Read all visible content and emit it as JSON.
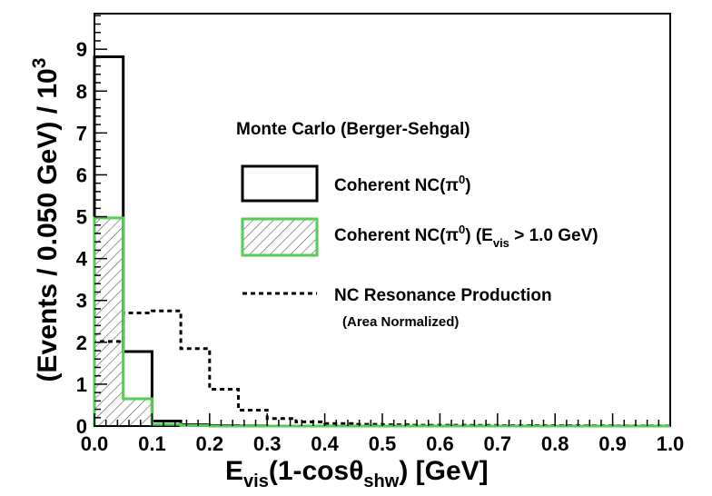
{
  "chart_data": {
    "type": "histogram",
    "title": "",
    "xlabel": "E_vis(1-cosθ_shw) [GeV]",
    "ylabel": "(Events / 0.050 GeV) / 10^3",
    "xlim": [
      0.0,
      1.0
    ],
    "ylim": [
      0,
      9.85
    ],
    "bin_width": 0.05,
    "bin_edges": [
      0.0,
      0.05,
      0.1,
      0.15,
      0.2,
      0.25,
      0.3,
      0.35,
      0.4,
      0.45,
      0.5,
      0.55,
      0.6,
      0.65,
      0.7,
      0.75,
      0.8,
      0.85,
      0.9,
      0.95,
      1.0
    ],
    "x_ticks": [
      "0.0",
      "0.1",
      "0.2",
      "0.3",
      "0.4",
      "0.5",
      "0.6",
      "0.7",
      "0.8",
      "0.9",
      "1.0"
    ],
    "y_ticks": [
      "0",
      "1",
      "2",
      "3",
      "4",
      "5",
      "6",
      "7",
      "8",
      "9"
    ],
    "legend_title": "Monte Carlo (Berger-Sehgal)",
    "series": [
      {
        "name": "Coherent NC(π⁰)",
        "style": "solid",
        "color": "#000000",
        "values": [
          8.82,
          1.78,
          0.12,
          0.03,
          0.01,
          0.005,
          0,
          0,
          0,
          0,
          0,
          0,
          0,
          0,
          0,
          0,
          0,
          0,
          0,
          0
        ]
      },
      {
        "name": "Coherent NC(π⁰) (E_vis > 1.0 GeV)",
        "style": "filled-hatched",
        "color": "#55cc55",
        "values": [
          4.97,
          0.65,
          0.04,
          0.01,
          0,
          0,
          0,
          0,
          0,
          0,
          0,
          0,
          0,
          0,
          0,
          0,
          0,
          0,
          0,
          0
        ]
      },
      {
        "name": "NC Resonance Production",
        "note": "(Area Normalized)",
        "style": "dashed",
        "color": "#000000",
        "values": [
          2.02,
          2.7,
          2.75,
          1.85,
          0.88,
          0.38,
          0.18,
          0.1,
          0.06,
          0.04,
          0.03,
          0.02,
          0.02,
          0.015,
          0.01,
          0.01,
          0.01,
          0.008,
          0.005,
          0.005
        ]
      }
    ]
  },
  "legend": {
    "title": "Monte Carlo (Berger-Sehgal)",
    "coherent_label": "Coherent NC(π",
    "coherent_sup": "0",
    "coherent_close": ")",
    "coherent_cut_label": "Coherent NC(π",
    "coherent_cut_sup": "0",
    "coherent_cut_mid": ") (E",
    "coherent_cut_sub": "vis",
    "coherent_cut_tail": " > 1.0 GeV)",
    "resonance_label": "NC Resonance Production",
    "resonance_note": "(Area Normalized)"
  },
  "axes": {
    "y_title_main": "(Events / 0.050 GeV) / 10",
    "y_title_sup": "3",
    "x_title_E": "E",
    "x_title_vis": "vis",
    "x_title_mid": "(1-cosθ",
    "x_title_shw": "shw",
    "x_title_tail": ") [GeV]"
  }
}
